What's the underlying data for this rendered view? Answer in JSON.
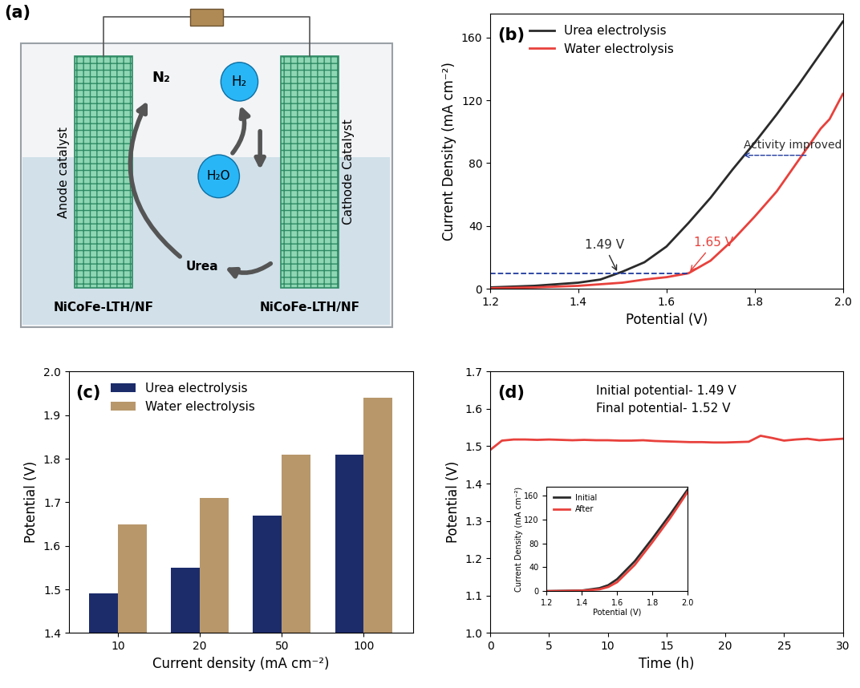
{
  "diagram": {
    "panel": "(a)",
    "anode": {
      "label": "Anode catalyst",
      "material": "NiCoFe-LTH/NF"
    },
    "cathode": {
      "label": "Cathode Catalyst",
      "material": "NiCoFe-LTH/NF"
    },
    "species": {
      "n2": "N₂",
      "h2": "H₂",
      "h2o": "H₂O",
      "urea": "Urea"
    }
  },
  "chart_data": [
    {
      "type": "line",
      "title": "(b)",
      "x_label": "Potential (V)",
      "y_label": "Current Density (mA cm⁻²)",
      "xlim": [
        1.2,
        2.0
      ],
      "xticks": [
        1.2,
        1.4,
        1.6,
        1.8,
        2.0
      ],
      "ylim": [
        0,
        175
      ],
      "yticks": [
        0,
        40,
        80,
        120,
        160
      ],
      "legend": "upper left",
      "series": [
        {
          "name": "Urea electrolysis",
          "color": "#2b2b2b",
          "x": [
            1.2,
            1.3,
            1.4,
            1.45,
            1.5,
            1.55,
            1.6,
            1.65,
            1.7,
            1.75,
            1.8,
            1.85,
            1.9,
            1.95,
            2.0
          ],
          "values": [
            1,
            2,
            4,
            6,
            11,
            17,
            27,
            42,
            58,
            76,
            93,
            111,
            130,
            150,
            170
          ]
        },
        {
          "name": "Water electrolysis",
          "color": "#e8413c",
          "x": [
            1.2,
            1.3,
            1.4,
            1.5,
            1.55,
            1.6,
            1.65,
            1.7,
            1.75,
            1.8,
            1.85,
            1.9,
            1.95,
            1.97,
            2.0
          ],
          "values": [
            0.5,
            1,
            2,
            4,
            6,
            7.5,
            10,
            18,
            31,
            46,
            62,
            82,
            102,
            108,
            124
          ]
        }
      ],
      "annotations": [
        {
          "text": "1.49 V",
          "x": 1.49,
          "y": 10,
          "color": "#2b2b2b"
        },
        {
          "text": "1.65 V",
          "x": 1.65,
          "y": 10,
          "color": "#e8413c"
        },
        {
          "text": "Activity improved",
          "x": 1.77,
          "y": 85,
          "color": "#1f3a9e"
        }
      ]
    },
    {
      "type": "bar",
      "title": "(c)",
      "x_label": "Current density (mA cm⁻²)",
      "y_label": "Potential (V)",
      "categories": [
        "10",
        "20",
        "50",
        "100"
      ],
      "ylim": [
        1.4,
        2.0
      ],
      "yticks": [
        1.4,
        1.5,
        1.6,
        1.7,
        1.8,
        1.9,
        2.0
      ],
      "legend": "upper left",
      "series": [
        {
          "name": "Urea electrolysis",
          "color": "#1c2c6b",
          "values": [
            1.49,
            1.55,
            1.67,
            1.81
          ]
        },
        {
          "name": "Water electrolysis",
          "color": "#b8976b",
          "values": [
            1.65,
            1.71,
            1.81,
            1.94
          ]
        }
      ]
    },
    {
      "type": "line",
      "title": "(d)",
      "x_label": "Time (h)",
      "y_label": "Potential (V)",
      "xlim": [
        0,
        30
      ],
      "xticks": [
        0,
        5,
        10,
        15,
        20,
        25,
        30
      ],
      "ylim": [
        1.0,
        1.7
      ],
      "yticks": [
        1.0,
        1.1,
        1.2,
        1.3,
        1.4,
        1.5,
        1.6,
        1.7
      ],
      "annotations": [
        {
          "text": "Initial potential- 1.49 V"
        },
        {
          "text": "Final potential- 1.52 V"
        }
      ],
      "series": [
        {
          "color": "#e8413c",
          "x": [
            0,
            1,
            2,
            3,
            4,
            5,
            6,
            7,
            8,
            9,
            10,
            11,
            12,
            13,
            14,
            15,
            16,
            17,
            18,
            19,
            20,
            21,
            22,
            23,
            24,
            25,
            26,
            27,
            28,
            29,
            30
          ],
          "values": [
            1.49,
            1.515,
            1.518,
            1.518,
            1.517,
            1.518,
            1.517,
            1.516,
            1.517,
            1.516,
            1.516,
            1.515,
            1.515,
            1.516,
            1.514,
            1.513,
            1.512,
            1.511,
            1.511,
            1.51,
            1.51,
            1.511,
            1.512,
            1.528,
            1.522,
            1.515,
            1.518,
            1.52,
            1.516,
            1.518,
            1.52
          ]
        }
      ],
      "inset": {
        "type": "line",
        "x_label": "Potential (V)",
        "y_label": "Current Density (mA cm⁻²)",
        "xlim": [
          1.2,
          2.0
        ],
        "xticks": [
          1.2,
          1.4,
          1.6,
          1.8,
          2.0
        ],
        "ylim": [
          0,
          175
        ],
        "yticks": [
          0,
          40,
          80,
          120,
          160
        ],
        "legend": "upper left",
        "series": [
          {
            "name": "Initial",
            "color": "#2b2b2b",
            "x": [
              1.2,
              1.3,
              1.4,
              1.5,
              1.55,
              1.6,
              1.7,
              1.8,
              1.9,
              2.0
            ],
            "values": [
              0,
              0.5,
              1,
              5,
              10,
              20,
              50,
              88,
              128,
              170
            ]
          },
          {
            "name": "After",
            "color": "#e8413c",
            "x": [
              1.2,
              1.3,
              1.4,
              1.5,
              1.55,
              1.6,
              1.7,
              1.8,
              1.9,
              2.0
            ],
            "values": [
              0,
              0.3,
              0.8,
              3,
              7,
              15,
              44,
              82,
              122,
              166
            ]
          }
        ]
      }
    }
  ]
}
